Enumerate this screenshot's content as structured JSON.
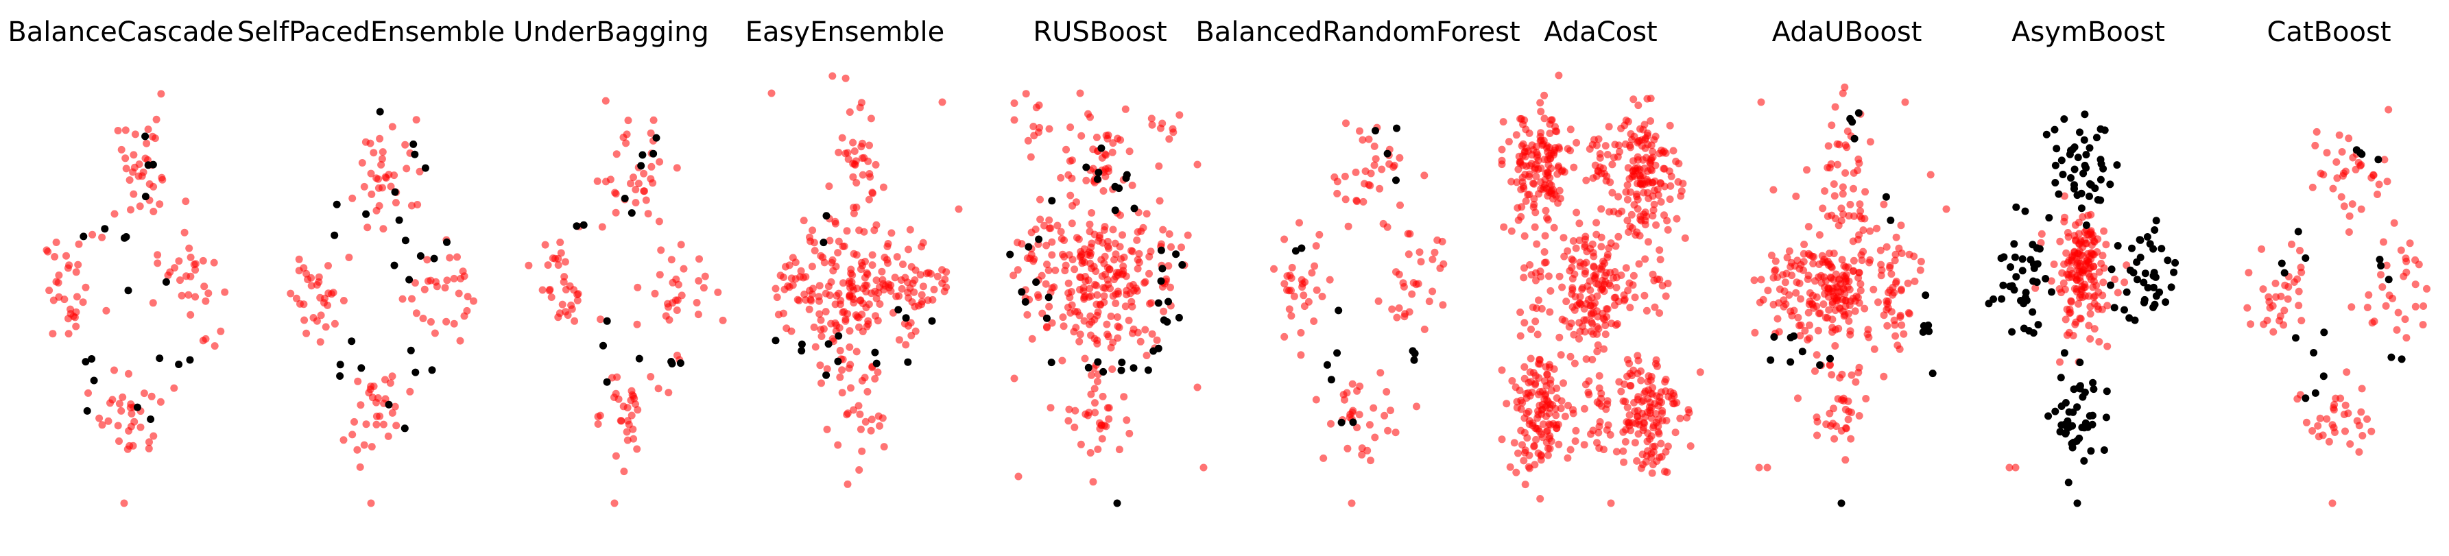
{
  "figure": {
    "colors": {
      "minority": "#ff0000",
      "majority": "#000000",
      "background": "#ffffff"
    },
    "grid": false,
    "axes": "off"
  },
  "chart_data": [
    {
      "type": "scatter",
      "title": "BalanceCascade",
      "layout": "quad",
      "red_single": [
        [
          0.47,
          0.04
        ]
      ],
      "black_single": [],
      "clusters": {
        "red": [
          [
            0.55,
            0.78,
            0.1,
            0.06,
            35
          ],
          [
            0.22,
            0.52,
            0.07,
            0.06,
            32
          ],
          [
            0.78,
            0.52,
            0.08,
            0.06,
            30
          ],
          [
            0.5,
            0.24,
            0.08,
            0.05,
            32
          ]
        ],
        "black": [
          [
            0.6,
            0.8,
            0.03,
            0.04,
            4
          ],
          [
            0.3,
            0.62,
            0.07,
            0.03,
            2
          ],
          [
            0.5,
            0.65,
            0.02,
            0.02,
            2
          ],
          [
            0.62,
            0.52,
            0.04,
            0.02,
            2
          ],
          [
            0.72,
            0.36,
            0.07,
            0.02,
            3
          ],
          [
            0.35,
            0.33,
            0.05,
            0.06,
            4
          ],
          [
            0.57,
            0.27,
            0.02,
            0.03,
            2
          ]
        ]
      }
    },
    {
      "type": "scatter",
      "title": "SelfPacedEnsemble",
      "layout": "quad",
      "red_single": [
        [
          0.47,
          0.04
        ]
      ],
      "black_single": [],
      "clusters": {
        "red": [
          [
            0.55,
            0.78,
            0.1,
            0.06,
            35
          ],
          [
            0.22,
            0.52,
            0.07,
            0.06,
            32
          ],
          [
            0.78,
            0.52,
            0.08,
            0.06,
            30
          ],
          [
            0.5,
            0.24,
            0.08,
            0.05,
            32
          ]
        ],
        "black": [
          [
            0.65,
            0.82,
            0.05,
            0.06,
            5
          ],
          [
            0.3,
            0.68,
            0.06,
            0.03,
            3
          ],
          [
            0.6,
            0.62,
            0.05,
            0.03,
            3
          ],
          [
            0.74,
            0.58,
            0.05,
            0.04,
            4
          ],
          [
            0.7,
            0.36,
            0.06,
            0.02,
            3
          ],
          [
            0.35,
            0.35,
            0.05,
            0.05,
            4
          ],
          [
            0.6,
            0.24,
            0.03,
            0.03,
            2
          ]
        ]
      }
    },
    {
      "type": "scatter",
      "title": "UnderBagging",
      "layout": "quad",
      "red_single": [
        [
          0.47,
          0.04
        ]
      ],
      "black_single": [],
      "clusters": {
        "red": [
          [
            0.55,
            0.78,
            0.1,
            0.06,
            35
          ],
          [
            0.22,
            0.52,
            0.07,
            0.06,
            32
          ],
          [
            0.78,
            0.52,
            0.08,
            0.06,
            30
          ],
          [
            0.5,
            0.24,
            0.08,
            0.05,
            32
          ]
        ],
        "black": [
          [
            0.62,
            0.82,
            0.04,
            0.04,
            4
          ],
          [
            0.3,
            0.68,
            0.04,
            0.03,
            2
          ],
          [
            0.55,
            0.72,
            0.04,
            0.02,
            2
          ],
          [
            0.74,
            0.36,
            0.07,
            0.02,
            4
          ],
          [
            0.45,
            0.33,
            0.04,
            0.04,
            3
          ]
        ]
      }
    },
    {
      "type": "scatter",
      "title": "EasyEnsemble",
      "layout": "cross",
      "red_single": [
        [
          0.05,
          0.96
        ],
        [
          0.88,
          0.94
        ],
        [
          0.96,
          0.7
        ]
      ],
      "black_single": [],
      "clusters": {
        "red": [
          [
            0.48,
            0.52,
            0.16,
            0.07,
            160
          ],
          [
            0.45,
            0.77,
            0.07,
            0.08,
            40
          ],
          [
            0.45,
            0.25,
            0.07,
            0.07,
            35
          ],
          [
            0.18,
            0.52,
            0.08,
            0.05,
            28
          ],
          [
            0.78,
            0.52,
            0.07,
            0.05,
            25
          ]
        ],
        "black": [
          [
            0.2,
            0.4,
            0.06,
            0.02,
            4
          ],
          [
            0.38,
            0.4,
            0.04,
            0.03,
            3
          ],
          [
            0.55,
            0.37,
            0.03,
            0.02,
            2
          ],
          [
            0.72,
            0.43,
            0.06,
            0.03,
            4
          ],
          [
            0.32,
            0.64,
            0.04,
            0.02,
            2
          ]
        ]
      }
    },
    {
      "type": "scatter",
      "title": "RUSBoost",
      "layout": "cross",
      "red_single": [
        [
          0.03,
          0.9
        ],
        [
          0.2,
          0.88
        ],
        [
          0.35,
          0.96
        ],
        [
          0.8,
          0.88
        ],
        [
          0.92,
          0.8
        ],
        [
          0.03,
          0.32
        ],
        [
          0.92,
          0.3
        ],
        [
          0.95,
          0.12
        ],
        [
          0.05,
          0.1
        ]
      ],
      "black_single": [
        [
          0.53,
          0.04
        ]
      ],
      "clusters": {
        "red": [
          [
            0.45,
            0.55,
            0.14,
            0.08,
            180
          ],
          [
            0.45,
            0.82,
            0.09,
            0.06,
            45
          ],
          [
            0.45,
            0.25,
            0.09,
            0.07,
            40
          ],
          [
            0.15,
            0.55,
            0.08,
            0.08,
            35
          ],
          [
            0.75,
            0.55,
            0.08,
            0.08,
            30
          ],
          [
            0.1,
            0.88,
            0.07,
            0.03,
            10
          ],
          [
            0.78,
            0.88,
            0.06,
            0.03,
            8
          ]
        ],
        "black": [
          [
            0.53,
            0.75,
            0.05,
            0.05,
            10
          ],
          [
            0.12,
            0.55,
            0.05,
            0.08,
            10
          ],
          [
            0.78,
            0.52,
            0.04,
            0.07,
            10
          ],
          [
            0.45,
            0.37,
            0.08,
            0.02,
            5
          ],
          [
            0.7,
            0.36,
            0.06,
            0.02,
            4
          ]
        ]
      }
    },
    {
      "type": "scatter",
      "title": "BalancedRandomForest",
      "layout": "quad",
      "red_single": [
        [
          0.47,
          0.04
        ]
      ],
      "black_single": [],
      "clusters": {
        "red": [
          [
            0.55,
            0.78,
            0.1,
            0.06,
            35
          ],
          [
            0.22,
            0.52,
            0.07,
            0.06,
            32
          ],
          [
            0.78,
            0.52,
            0.08,
            0.06,
            30
          ],
          [
            0.5,
            0.24,
            0.08,
            0.05,
            32
          ]
        ],
        "black": [
          [
            0.64,
            0.82,
            0.04,
            0.04,
            4
          ],
          [
            0.42,
            0.36,
            0.05,
            0.04,
            4
          ],
          [
            0.78,
            0.36,
            0.06,
            0.02,
            3
          ],
          [
            0.45,
            0.22,
            0.03,
            0.03,
            2
          ],
          [
            0.22,
            0.6,
            0.03,
            0.03,
            2
          ]
        ]
      }
    },
    {
      "type": "scatter",
      "title": "AdaCost",
      "layout": "grid6",
      "red_single": [
        [
          0.53,
          0.04
        ]
      ],
      "black_single": [],
      "clusters": {
        "red": [
          [
            0.18,
            0.78,
            0.08,
            0.07,
            150
          ],
          [
            0.7,
            0.78,
            0.08,
            0.07,
            150
          ],
          [
            0.45,
            0.52,
            0.08,
            0.07,
            150
          ],
          [
            0.18,
            0.25,
            0.08,
            0.07,
            140
          ],
          [
            0.7,
            0.25,
            0.08,
            0.07,
            140
          ],
          [
            0.45,
            0.8,
            0.06,
            0.05,
            25
          ],
          [
            0.45,
            0.25,
            0.06,
            0.05,
            25
          ],
          [
            0.18,
            0.52,
            0.05,
            0.05,
            20
          ],
          [
            0.7,
            0.52,
            0.05,
            0.05,
            20
          ]
        ],
        "black": []
      }
    },
    {
      "type": "scatter",
      "title": "AdaUBoost",
      "layout": "cross",
      "red_single": [
        [
          0.06,
          0.94
        ],
        [
          0.76,
          0.94
        ],
        [
          0.96,
          0.7
        ],
        [
          0.05,
          0.12
        ],
        [
          0.09,
          0.12
        ]
      ],
      "black_single": [
        [
          0.45,
          0.04
        ]
      ],
      "clusters": {
        "red": [
          [
            0.45,
            0.52,
            0.14,
            0.07,
            200
          ],
          [
            0.45,
            0.77,
            0.07,
            0.09,
            45
          ],
          [
            0.45,
            0.25,
            0.07,
            0.07,
            35
          ],
          [
            0.15,
            0.52,
            0.08,
            0.06,
            30
          ],
          [
            0.75,
            0.52,
            0.07,
            0.06,
            25
          ]
        ],
        "black": [
          [
            0.55,
            0.88,
            0.04,
            0.02,
            4
          ],
          [
            0.15,
            0.4,
            0.05,
            0.03,
            6
          ],
          [
            0.85,
            0.48,
            0.03,
            0.06,
            7
          ],
          [
            0.62,
            0.72,
            0.03,
            0.02,
            2
          ],
          [
            0.4,
            0.34,
            0.03,
            0.02,
            2
          ]
        ]
      }
    },
    {
      "type": "scatter",
      "title": "AsymBoost",
      "layout": "cross",
      "red_single": [
        [
          0.1,
          0.12
        ],
        [
          0.13,
          0.12
        ]
      ],
      "black_single": [
        [
          0.43,
          0.04
        ]
      ],
      "clusters": {
        "red": [
          [
            0.45,
            0.55,
            0.08,
            0.07,
            140
          ],
          [
            0.45,
            0.58,
            0.04,
            0.04,
            30
          ]
        ],
        "black": [
          [
            0.45,
            0.8,
            0.07,
            0.06,
            45
          ],
          [
            0.15,
            0.55,
            0.07,
            0.06,
            40
          ],
          [
            0.75,
            0.55,
            0.07,
            0.06,
            40
          ],
          [
            0.45,
            0.24,
            0.07,
            0.06,
            45
          ]
        ]
      }
    },
    {
      "type": "scatter",
      "title": "CatBoost",
      "layout": "quad",
      "red_single": [
        [
          0.47,
          0.04
        ]
      ],
      "black_single": [],
      "clusters": {
        "red": [
          [
            0.55,
            0.78,
            0.1,
            0.06,
            35
          ],
          [
            0.22,
            0.52,
            0.07,
            0.06,
            32
          ],
          [
            0.78,
            0.52,
            0.08,
            0.06,
            30
          ],
          [
            0.5,
            0.24,
            0.08,
            0.05,
            32
          ]
        ],
        "black": [
          [
            0.62,
            0.82,
            0.04,
            0.04,
            4
          ],
          [
            0.22,
            0.6,
            0.04,
            0.02,
            2
          ],
          [
            0.35,
            0.62,
            0.03,
            0.02,
            2
          ],
          [
            0.74,
            0.56,
            0.05,
            0.04,
            3
          ],
          [
            0.38,
            0.36,
            0.06,
            0.03,
            4
          ],
          [
            0.82,
            0.36,
            0.04,
            0.02,
            2
          ],
          [
            0.38,
            0.28,
            0.03,
            0.03,
            2
          ]
        ]
      }
    }
  ]
}
